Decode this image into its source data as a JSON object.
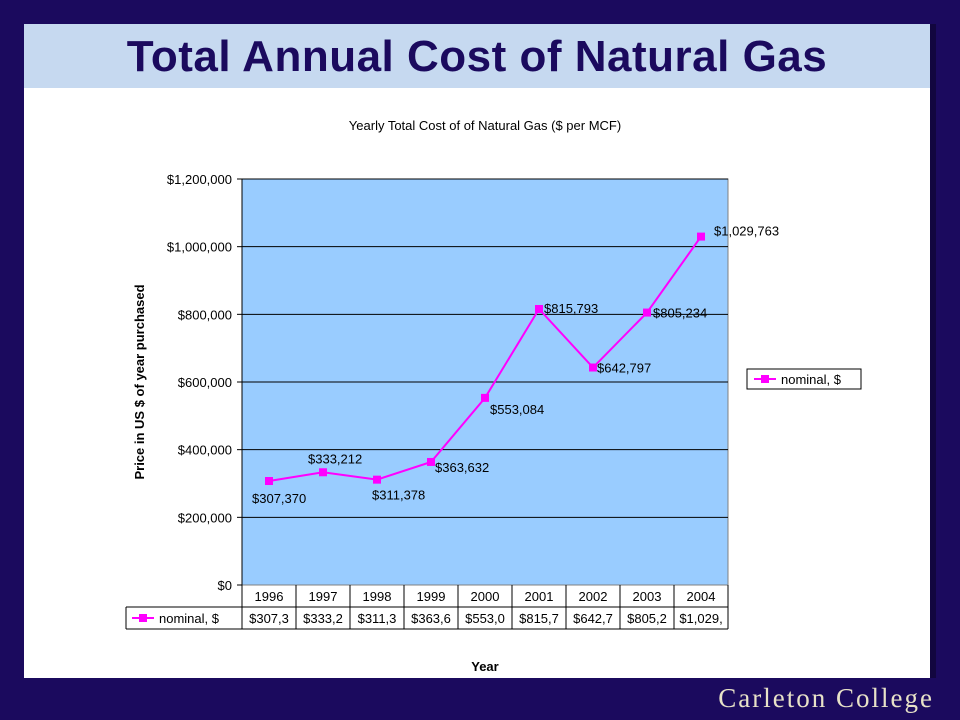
{
  "slide": {
    "title": "Total Annual Cost of Natural Gas",
    "brand": "Carleton College"
  },
  "colors": {
    "background": "#1b0a5e",
    "title_band": "#c6d9f0",
    "title_text": "#1b0a5e",
    "plot_area": "#99ccff",
    "series": "#ff00ff"
  },
  "chart_data": {
    "type": "line",
    "title": "Yearly Total Cost of of Natural Gas ($ per MCF)",
    "xlabel": "Year",
    "ylabel": "Price in US $ of year purchased",
    "categories": [
      "1996",
      "1997",
      "1998",
      "1999",
      "2000",
      "2001",
      "2002",
      "2003",
      "2004"
    ],
    "ylim": [
      0,
      1200000
    ],
    "y_ticks": [
      "$0",
      "$200,000",
      "$400,000",
      "$600,000",
      "$800,000",
      "$1,000,000",
      "$1,200,000"
    ],
    "grid": true,
    "legend_position": "right",
    "series": [
      {
        "name": "nominal, $",
        "values": [
          307370,
          333212,
          311378,
          363632,
          553084,
          815793,
          642797,
          805234,
          1029763
        ],
        "data_labels": [
          "$307,370",
          "$333,212",
          "$311,378",
          "$363,632",
          "$553,084",
          "$815,793",
          "$642,797",
          "$805,234",
          "$1,029,763"
        ],
        "table_values": [
          "$307,3",
          "$333,2",
          "$311,3",
          "$363,6",
          "$553,0",
          "$815,7",
          "$642,7",
          "$805,2",
          "$1,029,"
        ]
      }
    ]
  }
}
